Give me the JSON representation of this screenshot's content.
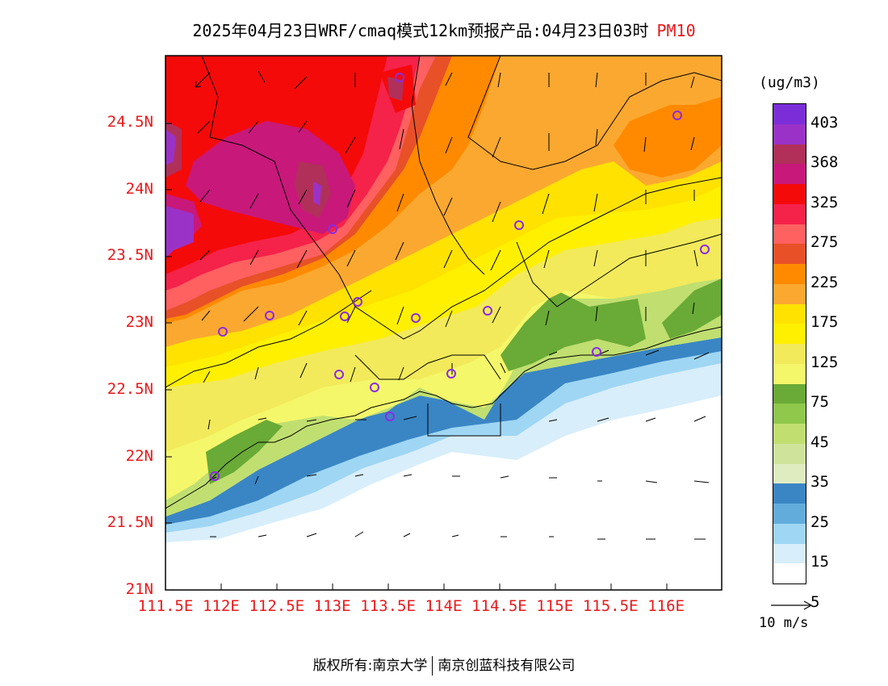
{
  "title": {
    "main": "2025年04月23日WRF/cmaq模式12km预报产品:04月23日03时",
    "pollutant": "PM10"
  },
  "axes": {
    "y_ticks": [
      {
        "label": "24.5N",
        "lat": 24.5
      },
      {
        "label": "24N",
        "lat": 24.0
      },
      {
        "label": "23.5N",
        "lat": 23.5
      },
      {
        "label": "23N",
        "lat": 23.0
      },
      {
        "label": "22.5N",
        "lat": 22.5
      },
      {
        "label": "22N",
        "lat": 22.0
      },
      {
        "label": "21.5N",
        "lat": 21.5
      },
      {
        "label": "21N",
        "lat": 21.0
      }
    ],
    "x_ticks": [
      {
        "label": "111.5E",
        "lon": 111.5
      },
      {
        "label": "112E",
        "lon": 112.0
      },
      {
        "label": "112.5E",
        "lon": 112.5
      },
      {
        "label": "113E",
        "lon": 113.0
      },
      {
        "label": "113.5E",
        "lon": 113.5
      },
      {
        "label": "114E",
        "lon": 114.0
      },
      {
        "label": "114.5E",
        "lon": 114.5
      },
      {
        "label": "115E",
        "lon": 115.0
      },
      {
        "label": "115.5E",
        "lon": 115.5
      },
      {
        "label": "116E",
        "lon": 116.0
      }
    ],
    "lon_range": [
      111.5,
      116.5
    ],
    "lat_range": [
      21.0,
      25.0
    ]
  },
  "colorbar": {
    "unit": "(ug/m3)",
    "labels": [
      "403",
      "368",
      "325",
      "275",
      "225",
      "175",
      "125",
      "75",
      "45",
      "35",
      "25",
      "15",
      "5"
    ],
    "colors": [
      "#7b2ed8",
      "#9b32c8",
      "#b0305a",
      "#c8187a",
      "#f50a0a",
      "#f5224a",
      "#ff6060",
      "#e85028",
      "#ff8a00",
      "#fba830",
      "#ffe200",
      "#fff000",
      "#f2ea5a",
      "#f4f76a",
      "#6aaa36",
      "#8fc84a",
      "#c0df70",
      "#cfe39a",
      "#dfecc0",
      "#3a86c4",
      "#62acdc",
      "#9fd6f3",
      "#d8eefa",
      "#ffffff"
    ]
  },
  "wind_key": {
    "label": "10 m/s"
  },
  "footer": {
    "left": "版权所有:南京大学",
    "right": "南京创蓝科技有限公司"
  }
}
